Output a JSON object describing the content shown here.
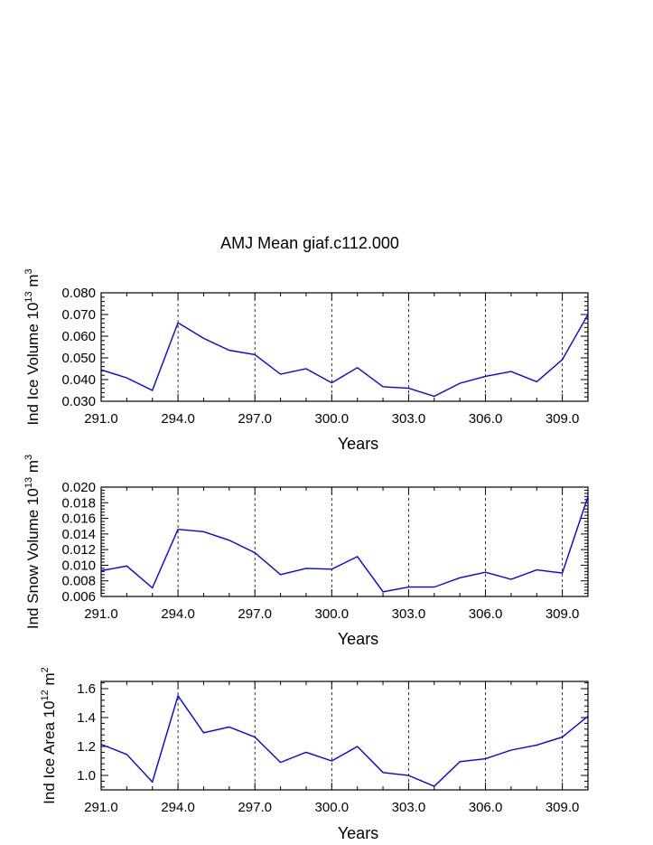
{
  "title": "AMJ Mean giaf.c112.000",
  "chart_data": [
    {
      "type": "line",
      "title": "",
      "xlabel": "Years",
      "ylabel_parts": [
        "Ind Ice Volume 10",
        "13",
        " m",
        "3"
      ],
      "xlim": [
        291,
        310
      ],
      "ylim": [
        0.03,
        0.08
      ],
      "xticks": [
        "291.0",
        "294.0",
        "297.0",
        "300.0",
        "303.0",
        "306.0",
        "309.0"
      ],
      "yticks": [
        "0.030",
        "0.040",
        "0.050",
        "0.060",
        "0.070",
        "0.080"
      ],
      "x": [
        291,
        292,
        293,
        294,
        295,
        296,
        297,
        298,
        299,
        300,
        301,
        302,
        303,
        304,
        305,
        306,
        307,
        308,
        309,
        310
      ],
      "series": [
        {
          "color": "#0000ff",
          "values": [
            0.0445,
            0.0408,
            0.035,
            0.0662,
            0.059,
            0.0535,
            0.0515,
            0.0425,
            0.045,
            0.0385,
            0.0455,
            0.0367,
            0.036,
            0.0323,
            0.0383,
            0.0415,
            0.0437,
            0.039,
            0.0492,
            0.07
          ]
        }
      ]
    },
    {
      "type": "line",
      "title": "",
      "xlabel": "Years",
      "ylabel_parts": [
        "Ind Snow Volume 10",
        "13",
        " m",
        "3"
      ],
      "xlim": [
        291,
        310
      ],
      "ylim": [
        0.006,
        0.02
      ],
      "xticks": [
        "291.0",
        "294.0",
        "297.0",
        "300.0",
        "303.0",
        "306.0",
        "309.0"
      ],
      "yticks": [
        "0.006",
        "0.008",
        "0.010",
        "0.012",
        "0.014",
        "0.016",
        "0.018",
        "0.020"
      ],
      "x": [
        291,
        292,
        293,
        294,
        295,
        296,
        297,
        298,
        299,
        300,
        301,
        302,
        303,
        304,
        305,
        306,
        307,
        308,
        309,
        310
      ],
      "series": [
        {
          "color": "#0000ff",
          "values": [
            0.0093,
            0.0099,
            0.0071,
            0.0146,
            0.0143,
            0.0132,
            0.0116,
            0.0088,
            0.0096,
            0.0095,
            0.0111,
            0.0066,
            0.0072,
            0.0072,
            0.0084,
            0.0091,
            0.0082,
            0.0094,
            0.009,
            0.0188
          ]
        }
      ]
    },
    {
      "type": "line",
      "title": "",
      "xlabel": "Years",
      "ylabel_parts": [
        "Ind Ice Area 10",
        "12",
        " m",
        "2"
      ],
      "xlim": [
        291,
        310
      ],
      "ylim": [
        0.9,
        1.65
      ],
      "xticks": [
        "291.0",
        "294.0",
        "297.0",
        "300.0",
        "303.0",
        "306.0",
        "309.0"
      ],
      "yticks": [
        "1.0",
        "1.2",
        "1.4",
        "1.6"
      ],
      "x": [
        291,
        292,
        293,
        294,
        295,
        296,
        297,
        298,
        299,
        300,
        301,
        302,
        303,
        304,
        305,
        306,
        307,
        308,
        309,
        310
      ],
      "series": [
        {
          "color": "#0000ff",
          "values": [
            1.215,
            1.145,
            0.955,
            1.55,
            1.295,
            1.335,
            1.265,
            1.09,
            1.16,
            1.1,
            1.2,
            1.02,
            1.0,
            0.925,
            1.095,
            1.115,
            1.175,
            1.21,
            1.265,
            1.41
          ]
        }
      ]
    }
  ]
}
